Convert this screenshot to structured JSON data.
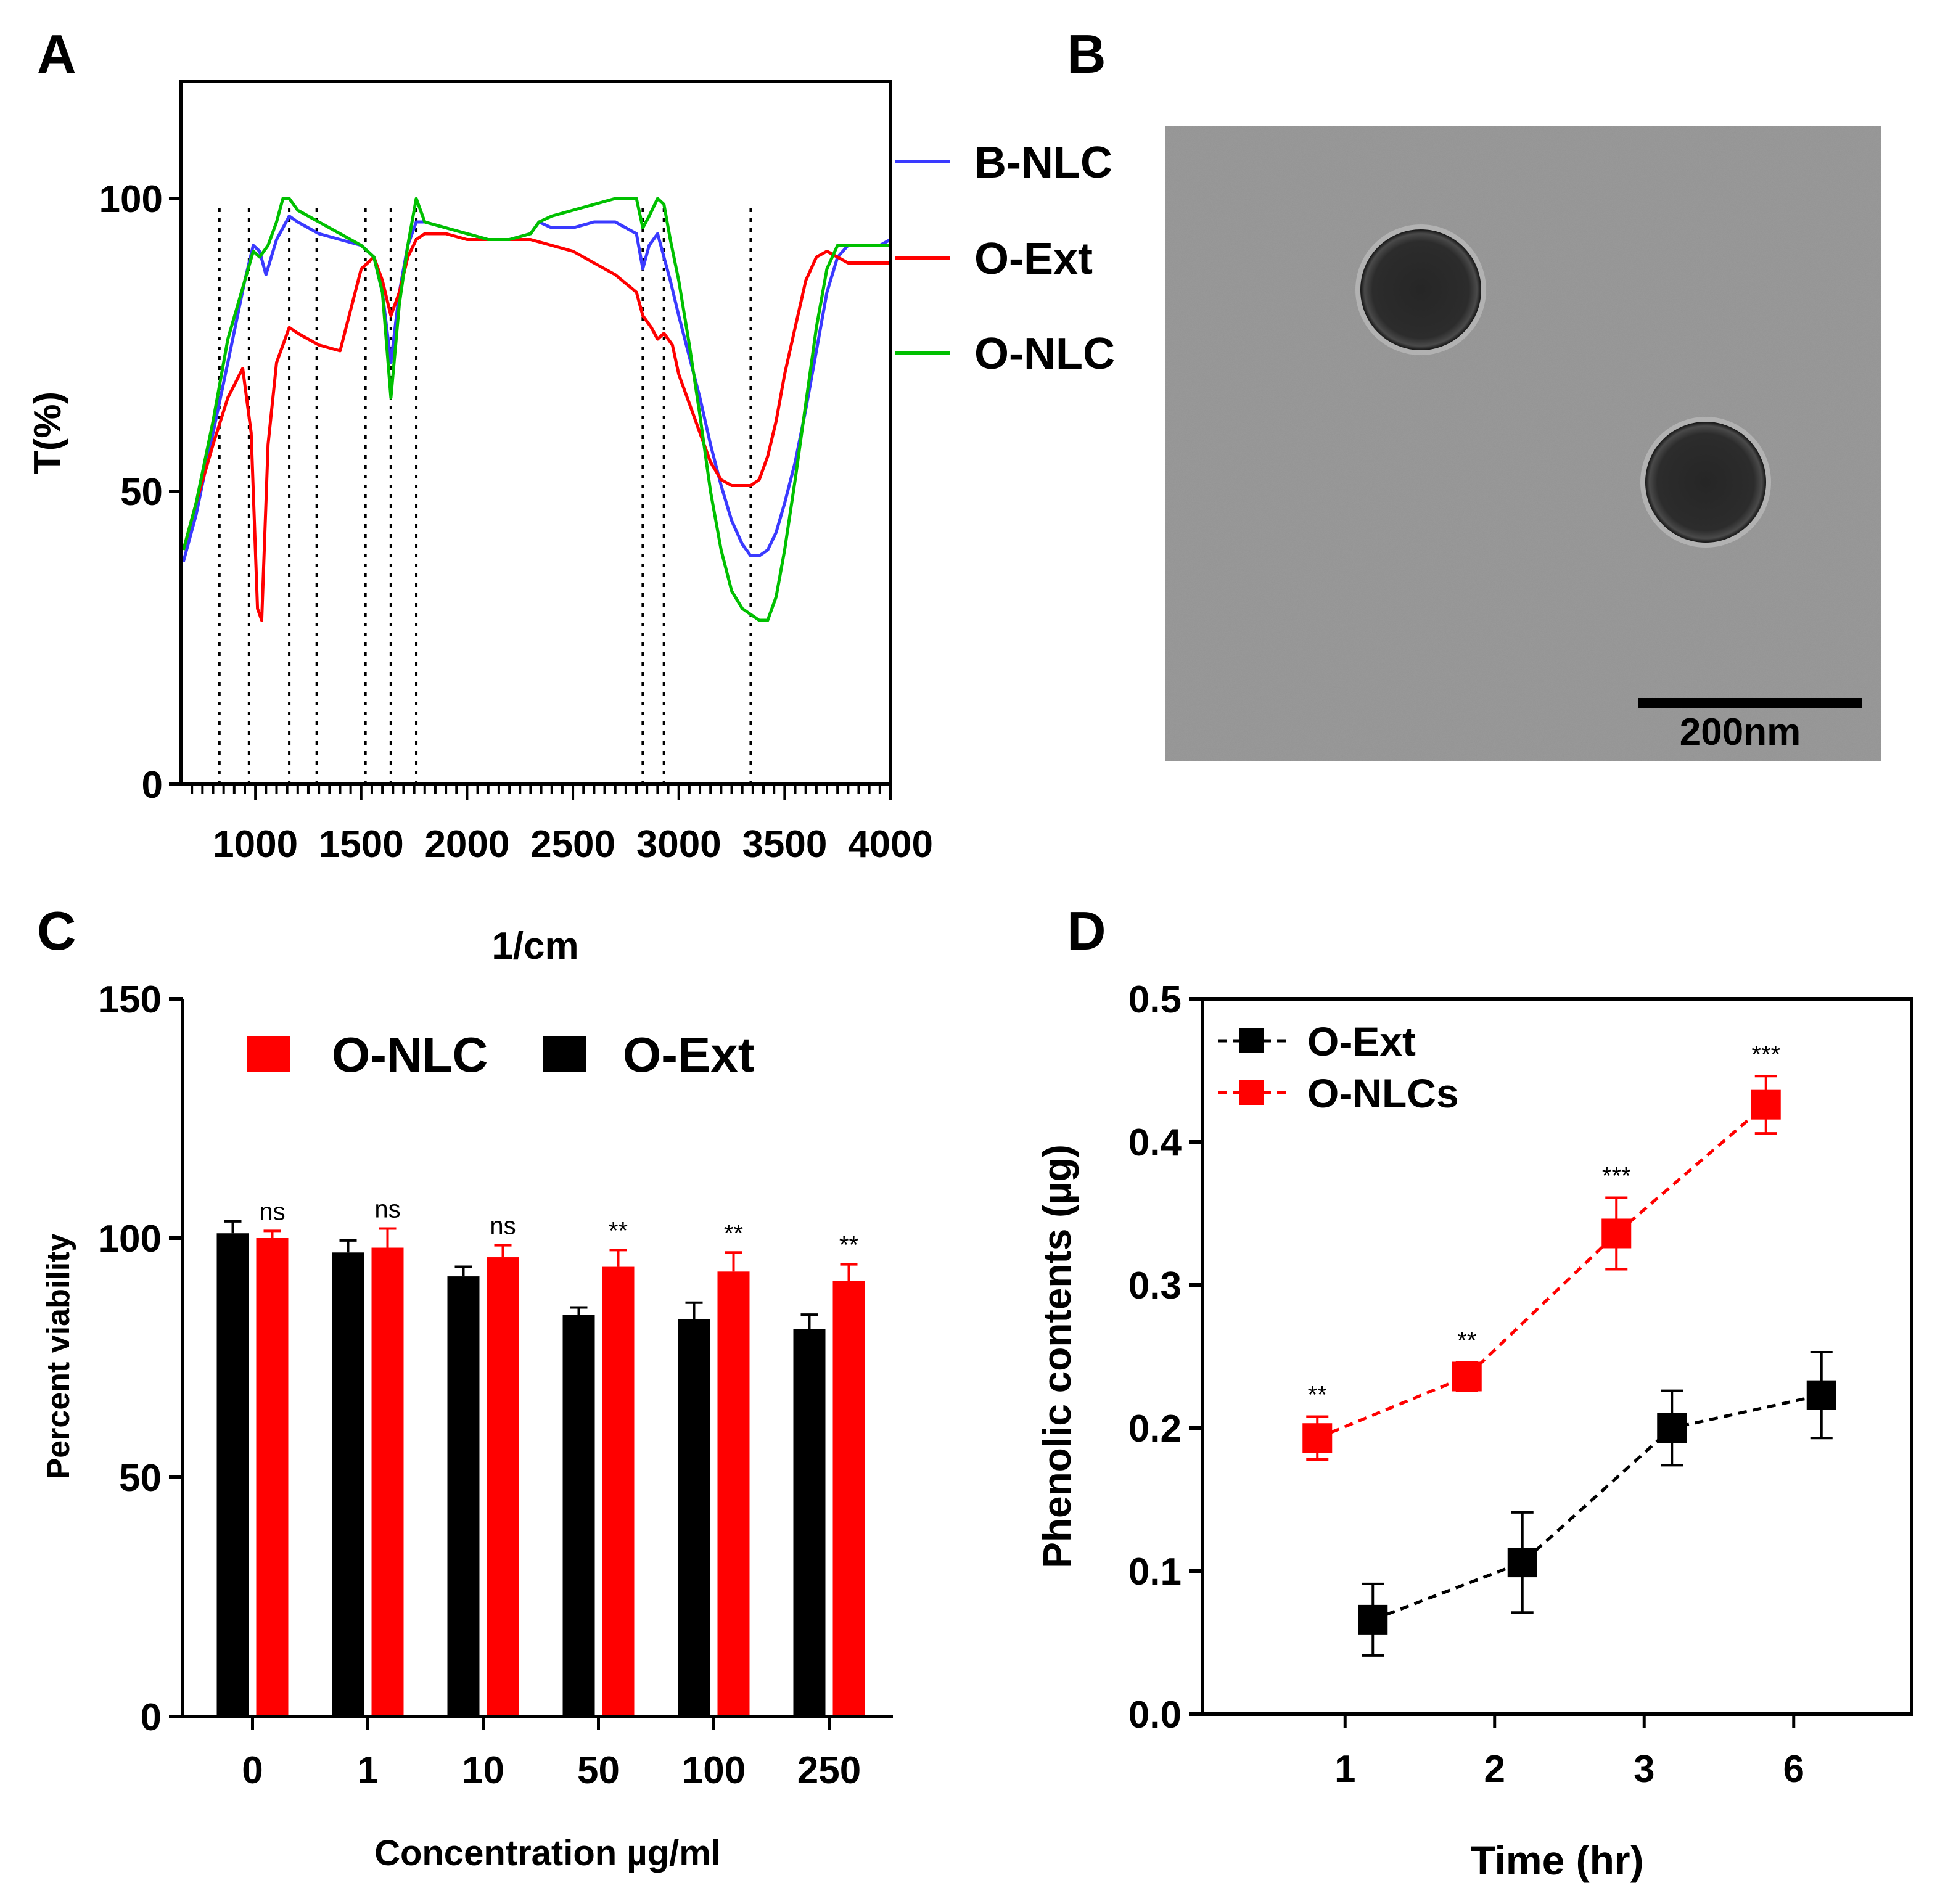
{
  "panels": {
    "A": "A",
    "B": "B",
    "C": "C",
    "D": "D"
  },
  "colors": {
    "red": "#ff0000",
    "blue": "#3a3aff",
    "green": "#00c000",
    "black": "#000000",
    "tem_bg": "#9a9a9a",
    "particle": "#222222"
  },
  "chart_data": [
    {
      "panel": "A",
      "type": "line",
      "title": "",
      "xlabel": "1/cm",
      "ylabel": "T(%)",
      "xlim": [
        650,
        4000
      ],
      "ylim": [
        0,
        120
      ],
      "xticks": [
        "1000",
        "1500",
        "2000",
        "2500",
        "3000",
        "3500",
        "4000"
      ],
      "yticks": [
        "0",
        "50",
        "100"
      ],
      "legend": [
        "B-NLC",
        "O-Ext",
        "O-NLC"
      ],
      "marker_lines_x": [
        830,
        970,
        1160,
        1290,
        1520,
        1640,
        1760,
        2830,
        2930,
        3340
      ],
      "series": [
        {
          "name": "B-NLC",
          "color": "#3a3aff",
          "x": [
            660,
            720,
            800,
            870,
            950,
            990,
            1020,
            1050,
            1100,
            1160,
            1200,
            1250,
            1300,
            1400,
            1500,
            1560,
            1600,
            1640,
            1680,
            1720,
            1760,
            1800,
            1900,
            2000,
            2100,
            2200,
            2300,
            2340,
            2400,
            2500,
            2600,
            2700,
            2800,
            2830,
            2860,
            2900,
            2930,
            2960,
            3000,
            3050,
            3100,
            3150,
            3200,
            3250,
            3300,
            3340,
            3380,
            3420,
            3460,
            3500,
            3550,
            3600,
            3650,
            3700,
            3750,
            3800,
            3850,
            3900,
            3950,
            4000
          ],
          "y": [
            38,
            46,
            60,
            72,
            86,
            92,
            91,
            87,
            93,
            97,
            96,
            95,
            94,
            93,
            92,
            90,
            84,
            72,
            84,
            92,
            96,
            96,
            95,
            94,
            93,
            93,
            94,
            96,
            95,
            95,
            96,
            96,
            94,
            88,
            92,
            94,
            90,
            86,
            80,
            73,
            66,
            58,
            51,
            45,
            41,
            39,
            39,
            40,
            43,
            48,
            55,
            64,
            74,
            84,
            90,
            92,
            92,
            92,
            92,
            93
          ]
        },
        {
          "name": "O-Ext",
          "color": "#ff0000",
          "x": [
            660,
            720,
            800,
            870,
            940,
            980,
            1010,
            1030,
            1060,
            1100,
            1160,
            1200,
            1250,
            1300,
            1400,
            1500,
            1560,
            1600,
            1640,
            1680,
            1720,
            1760,
            1800,
            1900,
            2000,
            2100,
            2200,
            2300,
            2400,
            2500,
            2600,
            2700,
            2800,
            2830,
            2870,
            2900,
            2930,
            2970,
            3000,
            3050,
            3100,
            3150,
            3200,
            3250,
            3300,
            3340,
            3380,
            3420,
            3460,
            3500,
            3550,
            3600,
            3650,
            3700,
            3750,
            3800,
            3850,
            3900,
            3950,
            4000
          ],
          "y": [
            40,
            48,
            58,
            66,
            71,
            60,
            30,
            28,
            58,
            72,
            78,
            77,
            76,
            75,
            74,
            88,
            90,
            86,
            80,
            84,
            90,
            93,
            94,
            94,
            93,
            93,
            93,
            93,
            92,
            91,
            89,
            87,
            84,
            80,
            78,
            76,
            77,
            75,
            70,
            65,
            60,
            55,
            52,
            51,
            51,
            51,
            52,
            56,
            62,
            70,
            78,
            86,
            90,
            91,
            90,
            89,
            89,
            89,
            89,
            89
          ]
        },
        {
          "name": "O-NLC",
          "color": "#00c000",
          "x": [
            660,
            720,
            800,
            870,
            950,
            990,
            1020,
            1060,
            1100,
            1130,
            1160,
            1200,
            1250,
            1300,
            1400,
            1500,
            1560,
            1600,
            1640,
            1680,
            1720,
            1760,
            1800,
            1900,
            2000,
            2100,
            2200,
            2300,
            2340,
            2400,
            2500,
            2600,
            2700,
            2800,
            2830,
            2860,
            2900,
            2930,
            2960,
            3000,
            3050,
            3100,
            3150,
            3200,
            3250,
            3300,
            3340,
            3380,
            3420,
            3460,
            3500,
            3550,
            3600,
            3650,
            3700,
            3750,
            3800,
            3850,
            3900,
            3950,
            4000
          ],
          "y": [
            40,
            48,
            62,
            76,
            86,
            91,
            90,
            92,
            96,
            100,
            100,
            98,
            97,
            96,
            94,
            92,
            90,
            84,
            66,
            82,
            92,
            100,
            96,
            95,
            94,
            93,
            93,
            94,
            96,
            97,
            98,
            99,
            100,
            100,
            95,
            97,
            100,
            99,
            93,
            86,
            75,
            63,
            50,
            40,
            33,
            30,
            29,
            28,
            28,
            32,
            40,
            52,
            65,
            78,
            88,
            92,
            92,
            92,
            92,
            92,
            92
          ]
        }
      ]
    },
    {
      "panel": "C",
      "type": "bar",
      "title": "",
      "xlabel": "Concentration µg/ml",
      "ylabel": "Percent viability",
      "ylim": [
        0,
        150
      ],
      "yticks": [
        "0",
        "50",
        "100",
        "150"
      ],
      "categories": [
        "0",
        "1",
        "10",
        "50",
        "100",
        "250"
      ],
      "legend": [
        "O-NLC",
        "O-Ext"
      ],
      "series": [
        {
          "name": "O-Ext",
          "color": "#000000",
          "values": [
            101,
            97,
            92,
            84,
            83,
            81
          ],
          "errors": [
            2.5,
            2.5,
            2,
            1.5,
            3.5,
            3
          ]
        },
        {
          "name": "O-NLC",
          "color": "#ff0000",
          "values": [
            100,
            98,
            96,
            94,
            93,
            91
          ],
          "errors": [
            1.5,
            4,
            2.5,
            3.5,
            4,
            3.5
          ]
        }
      ],
      "significance": [
        "ns",
        "ns",
        "ns",
        "**",
        "**",
        "**"
      ]
    },
    {
      "panel": "D",
      "type": "line",
      "title": "",
      "xlabel": "Time (hr)",
      "ylabel": "Phenolic contents (µg)",
      "ylim": [
        0.0,
        0.5
      ],
      "yticks": [
        "0.0",
        "0.1",
        "0.2",
        "0.3",
        "0.4",
        "0.5"
      ],
      "categories": [
        "1",
        "2",
        "3",
        "6"
      ],
      "legend": [
        "O-Ext",
        "O-NLCs"
      ],
      "series": [
        {
          "name": "O-Ext",
          "color": "#000000",
          "values": [
            0.066,
            0.106,
            0.2,
            0.223
          ],
          "errors": [
            0.025,
            0.035,
            0.026,
            0.03
          ]
        },
        {
          "name": "O-NLCs",
          "color": "#ff0000",
          "values": [
            0.193,
            0.236,
            0.336,
            0.426
          ],
          "errors": [
            0.015,
            0.01,
            0.025,
            0.02
          ]
        }
      ],
      "significance": [
        "**",
        "**",
        "***",
        "***"
      ]
    }
  ],
  "tem": {
    "scale_label": "200nm"
  }
}
